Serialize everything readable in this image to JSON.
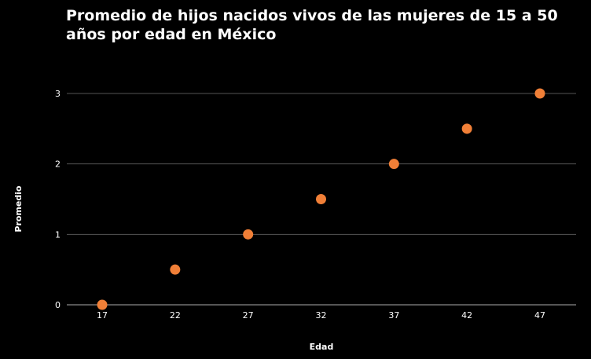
{
  "chart_data": {
    "type": "scatter",
    "title": "Promedio de hijos nacidos vivos de las mujeres de 15 a 50 años por edad en México",
    "xlabel": "Edad",
    "ylabel": "Promedio",
    "x": [
      17,
      22,
      27,
      32,
      37,
      42,
      47
    ],
    "y": [
      0,
      0.5,
      1,
      1.5,
      2,
      2.5,
      3
    ],
    "x_ticks": [
      "17",
      "22",
      "27",
      "32",
      "37",
      "42",
      "47"
    ],
    "y_ticks": [
      "0",
      "1",
      "2",
      "3"
    ],
    "ylim": [
      0,
      3
    ],
    "grid": true,
    "legend": "none",
    "colors": {
      "background": "#000000",
      "point": "#f07f37",
      "grid": "#555555",
      "axis": "#aaaaaa",
      "text": "#ffffff"
    }
  }
}
